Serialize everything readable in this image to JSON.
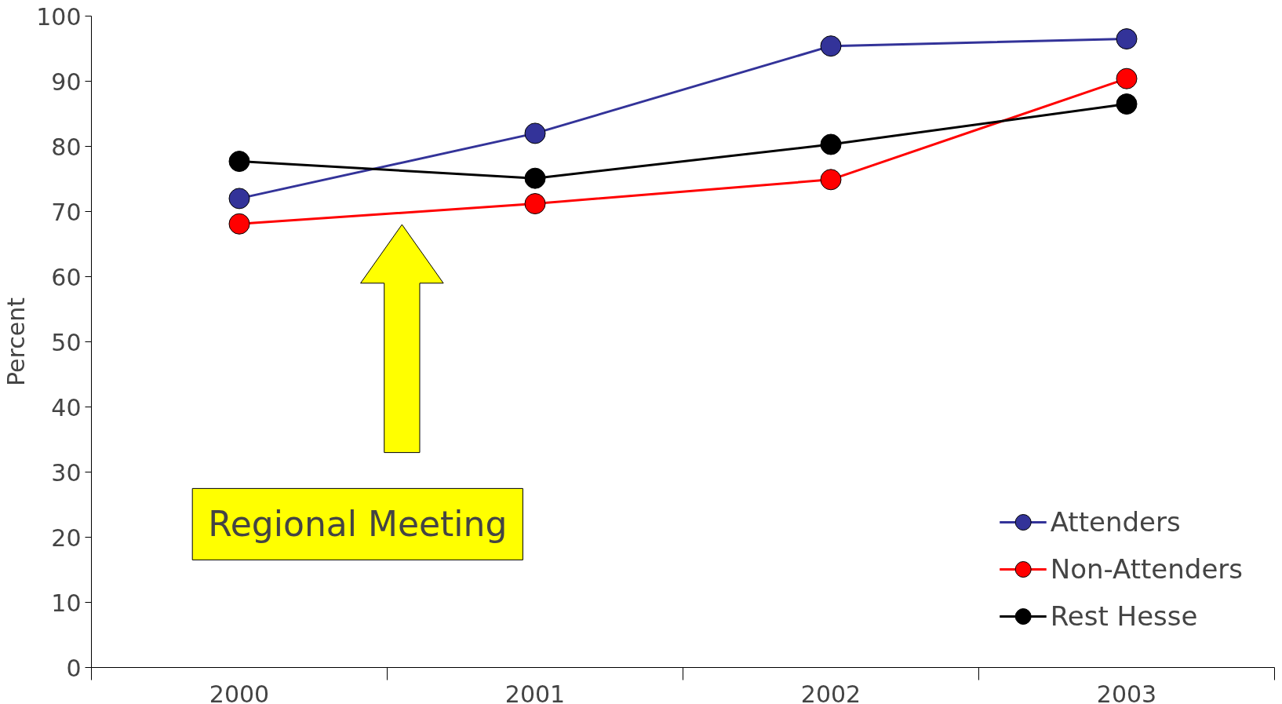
{
  "chart_data": {
    "type": "line",
    "ylabel": "Percent",
    "categories": [
      "2000",
      "2001",
      "2002",
      "2003"
    ],
    "series": [
      {
        "name": "Attenders",
        "color": "#333399",
        "values": [
          72.0,
          82.0,
          95.4,
          96.5
        ]
      },
      {
        "name": "Non-Attenders",
        "color": "#ff0000",
        "values": [
          68.1,
          71.2,
          74.9,
          90.4
        ]
      },
      {
        "name": "Rest Hesse",
        "color": "#000000",
        "values": [
          77.7,
          75.1,
          80.3,
          86.5
        ]
      }
    ],
    "ylim": [
      0,
      100
    ],
    "yticks": [
      0,
      10,
      20,
      30,
      40,
      50,
      60,
      70,
      80,
      90,
      100
    ],
    "grid": false,
    "legend": "bottom right",
    "marker": "circle",
    "line_style": "solid",
    "annotations": [
      "Regional Meeting"
    ]
  }
}
